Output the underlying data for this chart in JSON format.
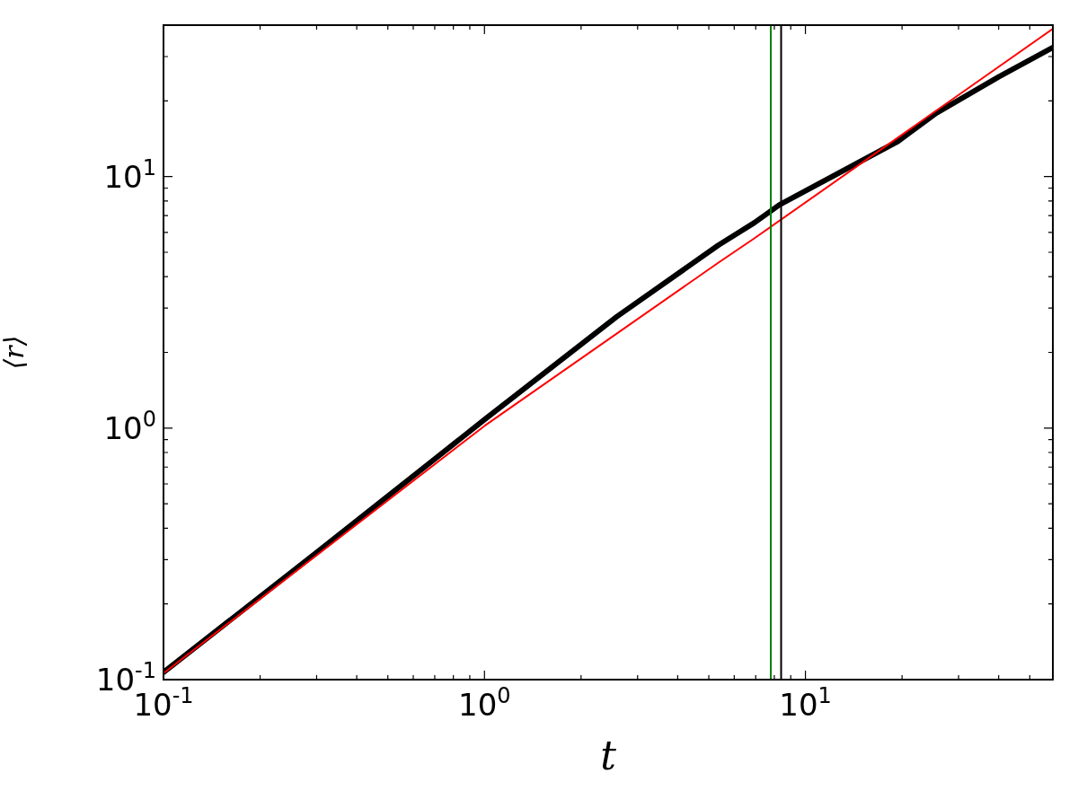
{
  "chart_data": {
    "type": "line",
    "xlabel": "t",
    "ylabel": "⟨r⟩",
    "log": "xy",
    "xlim": [
      0.1,
      59
    ],
    "ylim": [
      0.1,
      40
    ],
    "xticks": [
      {
        "value": 0.1,
        "label": "10$^{-1}$"
      },
      {
        "value": 0.2,
        "label": null
      },
      {
        "value": 0.3,
        "label": null
      },
      {
        "value": 0.4,
        "label": null
      },
      {
        "value": 0.5,
        "label": null
      },
      {
        "value": 0.6,
        "label": null
      },
      {
        "value": 0.7,
        "label": null
      },
      {
        "value": 0.8,
        "label": null
      },
      {
        "value": 0.9,
        "label": null
      },
      {
        "value": 1,
        "label": "10$^{0}$"
      },
      {
        "value": 2,
        "label": null
      },
      {
        "value": 3,
        "label": null
      },
      {
        "value": 4,
        "label": null
      },
      {
        "value": 5,
        "label": null
      },
      {
        "value": 6,
        "label": null
      },
      {
        "value": 7,
        "label": null
      },
      {
        "value": 8,
        "label": null
      },
      {
        "value": 9,
        "label": null
      },
      {
        "value": 10,
        "label": "10$^{1}$"
      },
      {
        "value": 20,
        "label": null
      },
      {
        "value": 30,
        "label": null
      },
      {
        "value": 40,
        "label": null
      },
      {
        "value": 50,
        "label": null
      }
    ],
    "yticks": [
      {
        "value": 0.1,
        "label": "10$^{-1}$"
      },
      {
        "value": 0.2,
        "label": null
      },
      {
        "value": 0.3,
        "label": null
      },
      {
        "value": 0.4,
        "label": null
      },
      {
        "value": 0.5,
        "label": null
      },
      {
        "value": 0.6,
        "label": null
      },
      {
        "value": 0.7,
        "label": null
      },
      {
        "value": 0.8,
        "label": null
      },
      {
        "value": 0.9,
        "label": null
      },
      {
        "value": 1,
        "label": "10$^{0}$"
      },
      {
        "value": 2,
        "label": null
      },
      {
        "value": 3,
        "label": null
      },
      {
        "value": 4,
        "label": null
      },
      {
        "value": 5,
        "label": null
      },
      {
        "value": 6,
        "label": null
      },
      {
        "value": 7,
        "label": null
      },
      {
        "value": 8,
        "label": null
      },
      {
        "value": 9,
        "label": null
      },
      {
        "value": 10,
        "label": "10$^{1}$"
      },
      {
        "value": 20,
        "label": null
      },
      {
        "value": 30,
        "label": null
      }
    ],
    "series": [
      {
        "type": "line",
        "color": "#000000",
        "x": [
          0.1,
          0.3,
          1,
          2.58,
          5.36,
          6.93,
          8.3,
          19.4,
          25.6,
          40,
          59
        ],
        "values": [
          0.107,
          0.32,
          1.08,
          2.77,
          5.34,
          6.55,
          7.72,
          13.8,
          17.9,
          24.9,
          32.6
        ]
      },
      {
        "type": "line",
        "color": "#ff0000",
        "x": [
          0.1,
          1,
          5.36,
          6.93,
          59
        ],
        "values": [
          0.106,
          1.02,
          4.55,
          5.68,
          38.7
        ]
      }
    ],
    "ref_lines": [
      {
        "axis": "x",
        "value": 7.8,
        "color": "#008000"
      },
      {
        "axis": "x",
        "value": 8.4,
        "color": "#000000"
      }
    ]
  }
}
